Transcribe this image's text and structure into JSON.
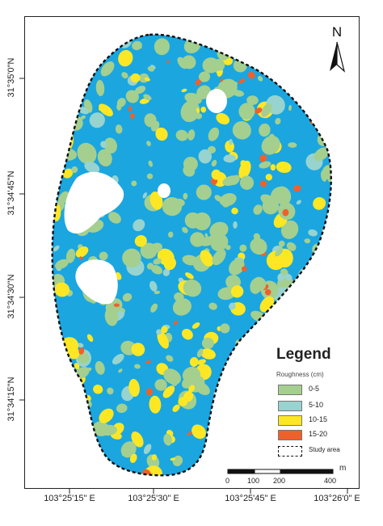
{
  "latitude_labels": [
    "31°35'0\"N",
    "31°34'45\"N",
    "31°34'30\"N",
    "31°34'15\"N"
  ],
  "longitude_labels": [
    "103°25'15\" E",
    "103°25'30\" E",
    "103°25'45\" E",
    "103°26'0\" E"
  ],
  "north_arrow": {
    "letter": "N",
    "icon": "north-arrow-icon"
  },
  "legend": {
    "title": "Legend",
    "subtitle": "Roughness (cm)",
    "classes": [
      {
        "label": "0-5",
        "color": "#a4cf8f"
      },
      {
        "label": "5-10",
        "color": "#97d3cf"
      },
      {
        "label": "10-15",
        "color": "#fde724"
      },
      {
        "label": "15-20",
        "color": "#f0602a"
      }
    ],
    "study_area_label": "Study area"
  },
  "scale_bar": {
    "ticks": [
      "0",
      "100",
      "200",
      "400"
    ],
    "unit": "m"
  },
  "colors": {
    "background_class": "#1ba6e0",
    "void": "#ffffff",
    "boundary": "#111111"
  }
}
